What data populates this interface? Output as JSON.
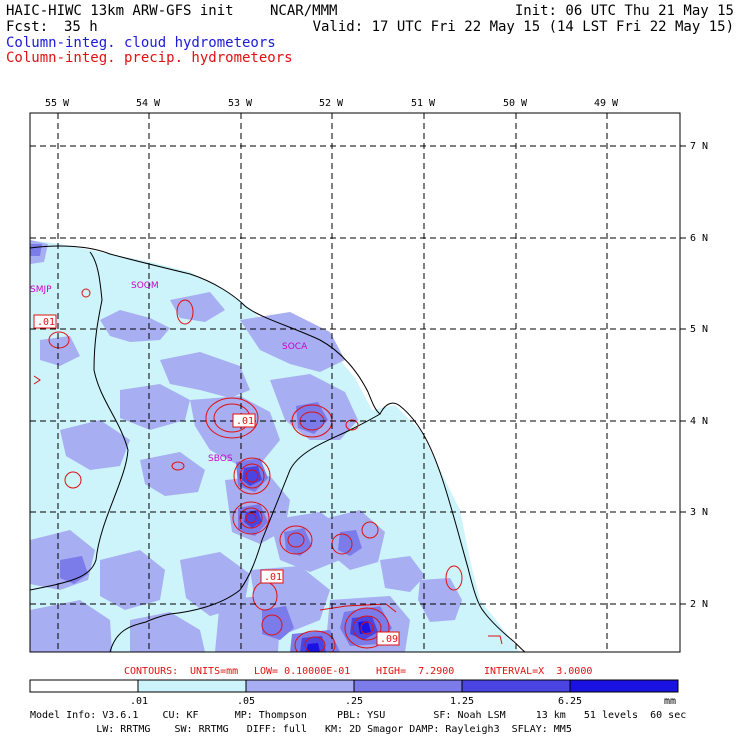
{
  "header": {
    "model": "HAIC-HIWC 13km ARW-GFS init",
    "center": "NCAR/MMM",
    "init": "Init: 06 UTC Thu 21 May 15",
    "fcst_label": "Fcst:",
    "fcst_value": "35 h",
    "valid": "Valid: 17 UTC Fri 22 May 15 (14 LST Fri 22 May 15)",
    "field1": "Column-integ. cloud hydrometeors",
    "field2": "Column-integ. precip. hydrometeors"
  },
  "axes": {
    "lon_labels": [
      "55 W",
      "54 W",
      "53 W",
      "52 W",
      "51 W",
      "50 W",
      "49 W"
    ],
    "lat_labels": [
      "7 N",
      "6 N",
      "5 N",
      "4 N",
      "3 N",
      "2 N"
    ]
  },
  "stations": [
    "SMJP",
    "SOOM",
    "SOCA",
    "SBOS"
  ],
  "contour_boxes": [
    ".01",
    ".01",
    ".01",
    ".09"
  ],
  "contours_line": {
    "label": "CONTOURS:",
    "units": "UNITS=mm",
    "low": "LOW= 0.10000E-01",
    "high": "HIGH=  7.2900",
    "interval": "INTERVAL=X  3.0000"
  },
  "legend": {
    "labels": [
      ".01",
      ".05",
      ".25",
      "1.25",
      "6.25",
      "mm"
    ],
    "colors": [
      "#ffffff",
      "#cdf3fb",
      "#a7aef2",
      "#7b7bea",
      "#4a44e3",
      "#1a12e0"
    ]
  },
  "footer": {
    "line1": "Model Info: V3.6.1    CU: KF      MP: Thompson     PBL: YSU        SF: Noah LSM     13 km   51 levels  60 sec",
    "line2": "           LW: RRTMG    SW: RRTMG   DIFF: full   KM: 2D Smagor DAMP: Rayleigh3  SFLAY: MM5"
  },
  "colors": {
    "cloud_contour_text": "#1a1ad8",
    "precip_contour": "#e01010",
    "station": "#cc00cc"
  }
}
